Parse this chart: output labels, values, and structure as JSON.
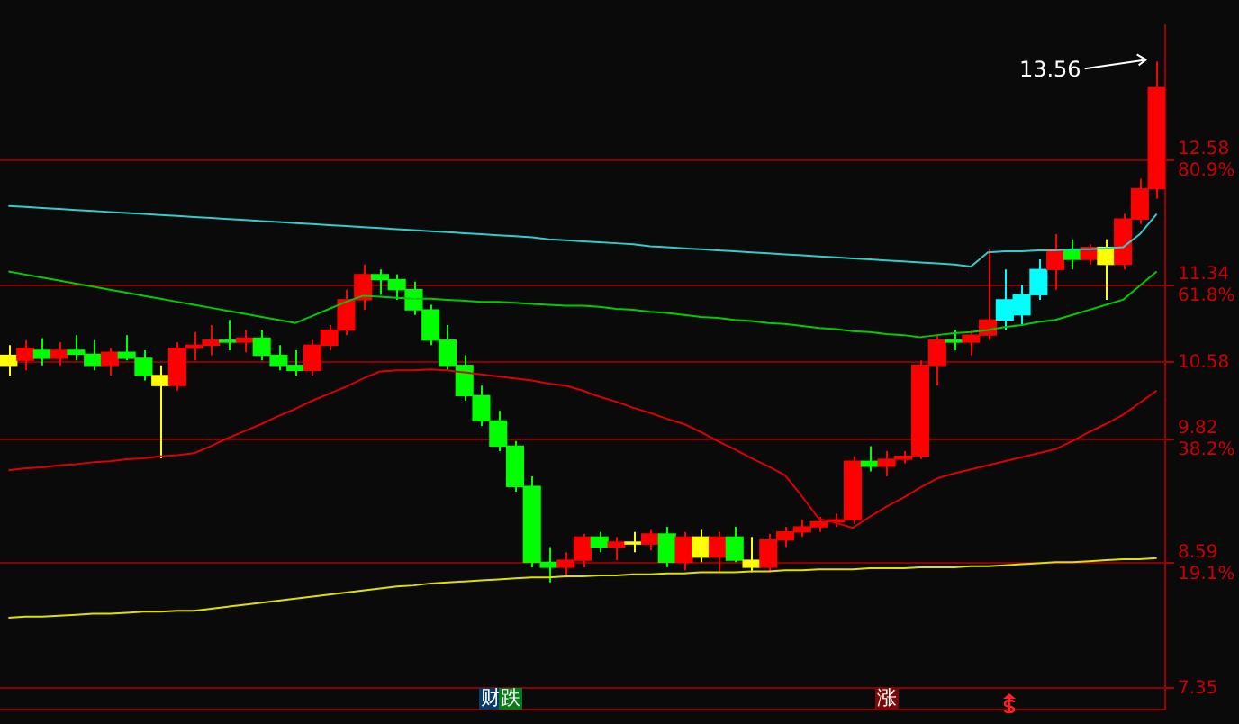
{
  "chart_data": {
    "type": "candlestick",
    "categories": [
      null,
      null,
      null,
      null,
      null,
      null,
      null,
      null,
      null,
      null,
      null,
      null,
      null,
      null,
      null,
      null,
      null,
      null,
      null,
      null,
      null,
      null,
      null,
      null,
      null,
      null,
      null,
      null,
      null,
      null,
      null,
      null,
      null,
      null,
      null,
      null,
      null,
      null,
      null,
      null,
      null,
      null,
      null,
      null,
      null,
      null,
      null,
      null,
      null,
      null,
      null,
      null,
      null,
      null,
      null,
      null,
      null,
      null,
      null,
      null,
      null,
      null,
      null,
      null,
      null,
      null,
      null,
      null,
      null
    ],
    "ohlc": [
      [
        10.55,
        10.75,
        10.45,
        10.65
      ],
      [
        10.6,
        10.8,
        10.5,
        10.72
      ],
      [
        10.7,
        10.82,
        10.55,
        10.62
      ],
      [
        10.62,
        10.78,
        10.55,
        10.7
      ],
      [
        10.7,
        10.85,
        10.6,
        10.66
      ],
      [
        10.66,
        10.8,
        10.5,
        10.55
      ],
      [
        10.55,
        10.72,
        10.45,
        10.68
      ],
      [
        10.68,
        10.85,
        10.6,
        10.62
      ],
      [
        10.62,
        10.7,
        10.4,
        10.45
      ],
      [
        10.45,
        10.55,
        9.63,
        10.35
      ],
      [
        10.35,
        10.78,
        10.3,
        10.72
      ],
      [
        10.72,
        10.88,
        10.6,
        10.75
      ],
      [
        10.75,
        10.95,
        10.65,
        10.8
      ],
      [
        10.8,
        11.0,
        10.7,
        10.78
      ],
      [
        10.78,
        10.9,
        10.68,
        10.82
      ],
      [
        10.82,
        10.9,
        10.6,
        10.65
      ],
      [
        10.65,
        10.75,
        10.5,
        10.55
      ],
      [
        10.55,
        10.7,
        10.45,
        10.5
      ],
      [
        10.5,
        10.8,
        10.45,
        10.75
      ],
      [
        10.75,
        10.95,
        10.7,
        10.9
      ],
      [
        10.9,
        11.3,
        10.85,
        11.2
      ],
      [
        11.2,
        11.55,
        11.1,
        11.45
      ],
      [
        11.45,
        11.5,
        11.25,
        11.4
      ],
      [
        11.4,
        11.45,
        11.2,
        11.3
      ],
      [
        11.3,
        11.38,
        11.05,
        11.1
      ],
      [
        11.1,
        11.15,
        10.75,
        10.8
      ],
      [
        10.8,
        10.95,
        10.5,
        10.55
      ],
      [
        10.55,
        10.65,
        10.2,
        10.25
      ],
      [
        10.25,
        10.35,
        9.95,
        10.0
      ],
      [
        10.0,
        10.1,
        9.7,
        9.75
      ],
      [
        9.75,
        9.8,
        9.3,
        9.35
      ],
      [
        9.35,
        9.45,
        8.55,
        8.6
      ],
      [
        8.6,
        8.75,
        8.4,
        8.55
      ],
      [
        8.55,
        8.7,
        8.45,
        8.62
      ],
      [
        8.62,
        8.88,
        8.55,
        8.85
      ],
      [
        8.85,
        8.9,
        8.7,
        8.75
      ],
      [
        8.75,
        8.85,
        8.62,
        8.8
      ],
      [
        8.8,
        8.9,
        8.7,
        8.78
      ],
      [
        8.78,
        8.92,
        8.72,
        8.88
      ],
      [
        8.88,
        8.95,
        8.55,
        8.6
      ],
      [
        8.6,
        8.9,
        8.52,
        8.85
      ],
      [
        8.85,
        8.92,
        8.6,
        8.65
      ],
      [
        8.65,
        8.9,
        8.5,
        8.85
      ],
      [
        8.85,
        8.95,
        8.6,
        8.62
      ],
      [
        8.62,
        8.85,
        8.5,
        8.55
      ],
      [
        8.55,
        8.88,
        8.5,
        8.82
      ],
      [
        8.82,
        8.95,
        8.75,
        8.9
      ],
      [
        8.9,
        9.02,
        8.85,
        8.95
      ],
      [
        8.95,
        9.05,
        8.9,
        9.0
      ],
      [
        9.0,
        9.08,
        8.95,
        9.02
      ],
      [
        9.02,
        9.65,
        8.98,
        9.6
      ],
      [
        9.6,
        9.75,
        9.5,
        9.55
      ],
      [
        9.55,
        9.7,
        9.45,
        9.62
      ],
      [
        9.62,
        9.7,
        9.58,
        9.65
      ],
      [
        9.65,
        10.6,
        9.62,
        10.55
      ],
      [
        10.55,
        10.85,
        10.35,
        10.8
      ],
      [
        10.8,
        10.9,
        10.7,
        10.78
      ],
      [
        10.78,
        10.9,
        10.65,
        10.85
      ],
      [
        10.85,
        11.7,
        10.8,
        11.0
      ],
      [
        11.0,
        11.5,
        10.9,
        11.2
      ],
      [
        11.05,
        11.35,
        10.95,
        11.25
      ],
      [
        11.25,
        11.6,
        11.2,
        11.5
      ],
      [
        11.5,
        11.85,
        11.3,
        11.7
      ],
      [
        11.7,
        11.8,
        11.5,
        11.6
      ],
      [
        11.6,
        11.75,
        11.55,
        11.72
      ],
      [
        11.72,
        11.8,
        11.2,
        11.55
      ],
      [
        11.55,
        12.05,
        11.5,
        12.0
      ],
      [
        12.0,
        12.4,
        11.95,
        12.3
      ],
      [
        12.3,
        13.56,
        12.2,
        13.3
      ]
    ],
    "colors": [
      "#ffff00",
      "#ff0000",
      "#00ff00",
      "#ff0000",
      "#00ff00",
      "#00ff00",
      "#ff0000",
      "#00ff00",
      "#00ff00",
      "#ffff00",
      "#ff0000",
      "#ff0000",
      "#ff0000",
      "#00ff00",
      "#ff0000",
      "#00ff00",
      "#00ff00",
      "#00ff00",
      "#ff0000",
      "#ff0000",
      "#ff0000",
      "#ff0000",
      "#00ff00",
      "#00ff00",
      "#00ff00",
      "#00ff00",
      "#00ff00",
      "#00ff00",
      "#00ff00",
      "#00ff00",
      "#00ff00",
      "#00ff00",
      "#00ff00",
      "#ff0000",
      "#ff0000",
      "#00ff00",
      "#ff0000",
      "#ffff00",
      "#ff0000",
      "#00ff00",
      "#ff0000",
      "#ffff00",
      "#ff0000",
      "#00ff00",
      "#ffff00",
      "#ff0000",
      "#ff0000",
      "#ff0000",
      "#ff0000",
      "#ff0000",
      "#ff0000",
      "#00ff00",
      "#ff0000",
      "#ff0000",
      "#ff0000",
      "#ff0000",
      "#00ff00",
      "#ff0000",
      "#ff0000",
      "#00ffff",
      "#00ffff",
      "#00ffff",
      "#ff0000",
      "#00ff00",
      "#ff0000",
      "#ffff00",
      "#ff0000",
      "#ff0000",
      "#ff0000"
    ],
    "series": [
      {
        "type": "line",
        "color": "#33cccc",
        "values": [
          12.13,
          12.12,
          12.11,
          12.1,
          12.09,
          12.08,
          12.07,
          12.06,
          12.05,
          12.04,
          12.03,
          12.02,
          12.01,
          12.0,
          11.99,
          11.98,
          11.97,
          11.96,
          11.95,
          11.94,
          11.93,
          11.92,
          11.91,
          11.9,
          11.89,
          11.88,
          11.87,
          11.86,
          11.85,
          11.84,
          11.83,
          11.82,
          11.8,
          11.79,
          11.78,
          11.77,
          11.76,
          11.75,
          11.73,
          11.72,
          11.71,
          11.7,
          11.69,
          11.68,
          11.67,
          11.66,
          11.65,
          11.64,
          11.63,
          11.62,
          11.61,
          11.6,
          11.59,
          11.58,
          11.57,
          11.56,
          11.55,
          11.53,
          11.67,
          11.68,
          11.68,
          11.69,
          11.69,
          11.7,
          11.7,
          11.71,
          11.72,
          11.85,
          12.05
        ]
      },
      {
        "type": "line",
        "color": "#00cc00",
        "values": [
          11.48,
          11.45,
          11.42,
          11.39,
          11.36,
          11.33,
          11.3,
          11.27,
          11.24,
          11.21,
          11.18,
          11.15,
          11.12,
          11.09,
          11.06,
          11.03,
          11.0,
          10.97,
          11.04,
          11.11,
          11.18,
          11.24,
          11.23,
          11.22,
          11.21,
          11.21,
          11.2,
          11.19,
          11.18,
          11.18,
          11.17,
          11.16,
          11.15,
          11.14,
          11.14,
          11.13,
          11.11,
          11.1,
          11.08,
          11.07,
          11.05,
          11.03,
          11.02,
          11.0,
          10.99,
          10.97,
          10.96,
          10.94,
          10.92,
          10.91,
          10.89,
          10.88,
          10.86,
          10.85,
          10.83,
          10.85,
          10.87,
          10.88,
          10.9,
          10.93,
          10.95,
          10.98,
          11.0,
          11.05,
          11.1,
          11.15,
          11.2,
          11.34,
          11.48
        ]
      },
      {
        "type": "line",
        "color": "#dd0000",
        "values": [
          9.51,
          9.53,
          9.54,
          9.56,
          9.57,
          9.59,
          9.6,
          9.62,
          9.63,
          9.65,
          9.66,
          9.68,
          9.75,
          9.83,
          9.9,
          9.97,
          10.05,
          10.12,
          10.2,
          10.27,
          10.34,
          10.42,
          10.49,
          10.5,
          10.5,
          10.51,
          10.5,
          10.48,
          10.46,
          10.44,
          10.42,
          10.4,
          10.37,
          10.35,
          10.3,
          10.24,
          10.19,
          10.13,
          10.08,
          10.02,
          9.97,
          9.89,
          9.8,
          9.72,
          9.63,
          9.55,
          9.46,
          9.25,
          9.03,
          8.99,
          8.94,
          9.05,
          9.15,
          9.24,
          9.34,
          9.43,
          9.48,
          9.52,
          9.56,
          9.6,
          9.64,
          9.68,
          9.72,
          9.8,
          9.89,
          9.97,
          10.06,
          10.18,
          10.3
        ]
      },
      {
        "type": "line",
        "color": "#e0e000",
        "values": [
          8.05,
          8.06,
          8.06,
          8.07,
          8.08,
          8.09,
          8.09,
          8.1,
          8.11,
          8.11,
          8.12,
          8.12,
          8.14,
          8.16,
          8.18,
          8.2,
          8.22,
          8.24,
          8.26,
          8.28,
          8.3,
          8.32,
          8.34,
          8.36,
          8.37,
          8.39,
          8.4,
          8.41,
          8.42,
          8.43,
          8.44,
          8.45,
          8.45,
          8.46,
          8.46,
          8.47,
          8.47,
          8.48,
          8.48,
          8.49,
          8.49,
          8.5,
          8.5,
          8.5,
          8.51,
          8.51,
          8.52,
          8.52,
          8.53,
          8.53,
          8.53,
          8.54,
          8.54,
          8.54,
          8.55,
          8.55,
          8.55,
          8.56,
          8.56,
          8.57,
          8.58,
          8.59,
          8.6,
          8.6,
          8.61,
          8.62,
          8.63,
          8.63,
          8.64
        ]
      }
    ],
    "ylim": [
      7.14,
      13.92
    ],
    "yticks": [
      {
        "value": 7.35,
        "label": "7.35"
      },
      {
        "value": 8.59,
        "label": "8.59\n19.1%"
      },
      {
        "value": 9.82,
        "label": "9.82\n38.2%"
      },
      {
        "value": 10.58,
        "label": "10.58"
      },
      {
        "value": 11.34,
        "label": "11.34\n61.8%"
      },
      {
        "value": 12.58,
        "label": "12.58\n80.9%"
      }
    ],
    "grid": "y",
    "tick_labels": "y",
    "annotations": [
      "13.56",
      "财",
      "跌",
      "涨"
    ]
  }
}
